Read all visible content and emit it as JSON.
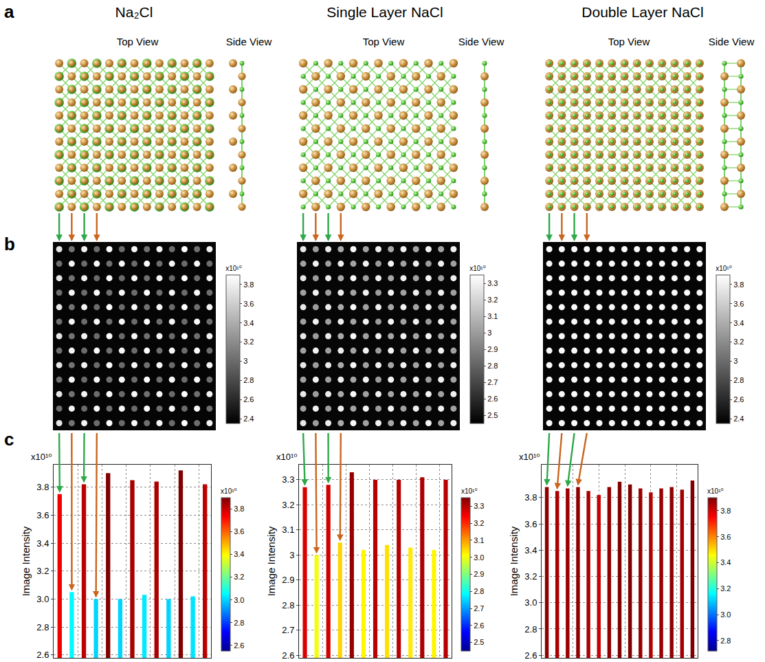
{
  "panel_letters": [
    "a",
    "b",
    "c"
  ],
  "columns": [
    {
      "title": "Na₂Cl",
      "top_view": "Top View",
      "side_view": "Side View"
    },
    {
      "title": "Single Layer NaCl",
      "top_view": "Top View",
      "side_view": "Side View"
    },
    {
      "title": "Double Layer NaCl",
      "top_view": "Top View",
      "side_view": "Side View"
    }
  ],
  "chart_data": [
    {
      "type": "heatmap",
      "multiplier": "x10¹⁰",
      "tick_labels": false,
      "background": 2.38,
      "colorbar_range": [
        2.35,
        3.9
      ],
      "colorbar_ticks": [
        2.4,
        2.6,
        2.8,
        3,
        3.2,
        3.4,
        3.6,
        3.8
      ],
      "cells": [
        [
          3.75,
          3.05,
          3.82,
          3.0,
          3.9,
          3.0,
          3.85,
          3.03,
          3.84,
          3.0,
          3.92,
          3.02,
          3.82
        ],
        [
          3.02,
          3.84,
          3.0,
          3.86,
          3.03,
          3.85,
          3.0,
          3.88,
          3.02,
          3.84,
          3.0,
          3.86,
          3.02
        ],
        [
          3.75,
          3.05,
          3.82,
          3.0,
          3.9,
          3.0,
          3.85,
          3.03,
          3.84,
          3.0,
          3.92,
          3.02,
          3.82
        ],
        [
          3.02,
          3.84,
          3.0,
          3.86,
          3.03,
          3.85,
          3.0,
          3.88,
          3.02,
          3.84,
          3.0,
          3.86,
          3.02
        ],
        [
          3.75,
          3.05,
          3.82,
          3.0,
          3.9,
          3.0,
          3.85,
          3.03,
          3.84,
          3.0,
          3.92,
          3.02,
          3.82
        ],
        [
          3.02,
          3.84,
          3.0,
          3.86,
          3.03,
          3.85,
          3.0,
          3.88,
          3.02,
          3.84,
          3.0,
          3.86,
          3.02
        ],
        [
          3.75,
          3.05,
          3.82,
          3.0,
          3.9,
          3.0,
          3.85,
          3.03,
          3.84,
          3.0,
          3.92,
          3.02,
          3.82
        ],
        [
          3.02,
          3.84,
          3.0,
          3.86,
          3.03,
          3.85,
          3.0,
          3.88,
          3.02,
          3.84,
          3.0,
          3.86,
          3.02
        ],
        [
          3.75,
          3.05,
          3.82,
          3.0,
          3.9,
          3.0,
          3.85,
          3.03,
          3.84,
          3.0,
          3.92,
          3.02,
          3.82
        ],
        [
          3.02,
          3.84,
          3.0,
          3.86,
          3.03,
          3.85,
          3.0,
          3.88,
          3.02,
          3.84,
          3.0,
          3.86,
          3.02
        ],
        [
          3.75,
          3.05,
          3.82,
          3.0,
          3.9,
          3.0,
          3.85,
          3.03,
          3.84,
          3.0,
          3.92,
          3.02,
          3.82
        ],
        [
          3.02,
          3.84,
          3.0,
          3.86,
          3.03,
          3.85,
          3.0,
          3.88,
          3.02,
          3.84,
          3.0,
          3.86,
          3.02
        ],
        [
          3.75,
          3.05,
          3.82,
          3.0,
          3.9,
          3.0,
          3.85,
          3.03,
          3.84,
          3.0,
          3.92,
          3.02,
          3.82
        ]
      ]
    },
    {
      "type": "heatmap",
      "multiplier": "x10¹⁰",
      "tick_labels": false,
      "background": 2.47,
      "colorbar_range": [
        2.45,
        3.35
      ],
      "colorbar_ticks": [
        2.5,
        2.6,
        2.7,
        2.8,
        2.9,
        3,
        3.1,
        3.2,
        3.3
      ],
      "cells": [
        [
          3.27,
          3.0,
          3.28,
          3.05,
          3.33,
          3.02,
          3.3,
          3.04,
          3.3,
          3.03,
          3.31,
          3.02,
          3.3
        ],
        [
          3.02,
          3.3,
          3.01,
          3.29,
          3.03,
          3.3,
          3.0,
          3.31,
          3.02,
          3.29,
          3.0,
          3.3,
          3.02
        ],
        [
          3.27,
          3.0,
          3.28,
          3.05,
          3.33,
          3.02,
          3.3,
          3.04,
          3.3,
          3.03,
          3.31,
          3.02,
          3.3
        ],
        [
          3.02,
          3.3,
          3.01,
          3.29,
          3.03,
          3.3,
          3.0,
          3.31,
          3.02,
          3.29,
          3.0,
          3.3,
          3.02
        ],
        [
          3.27,
          3.0,
          3.28,
          3.05,
          3.33,
          3.02,
          3.3,
          3.04,
          3.3,
          3.03,
          3.31,
          3.02,
          3.3
        ],
        [
          3.02,
          3.3,
          3.01,
          3.29,
          3.03,
          3.3,
          3.0,
          3.31,
          3.02,
          3.29,
          3.0,
          3.3,
          3.02
        ],
        [
          3.27,
          3.0,
          3.28,
          3.05,
          3.33,
          3.02,
          3.3,
          3.04,
          3.3,
          3.03,
          3.31,
          3.02,
          3.3
        ],
        [
          3.02,
          3.3,
          3.01,
          3.29,
          3.03,
          3.3,
          3.0,
          3.31,
          3.02,
          3.29,
          3.0,
          3.3,
          3.02
        ],
        [
          3.27,
          3.0,
          3.28,
          3.05,
          3.33,
          3.02,
          3.3,
          3.04,
          3.3,
          3.03,
          3.31,
          3.02,
          3.3
        ],
        [
          3.02,
          3.3,
          3.01,
          3.29,
          3.03,
          3.3,
          3.0,
          3.31,
          3.02,
          3.29,
          3.0,
          3.3,
          3.02
        ],
        [
          3.27,
          3.0,
          3.28,
          3.05,
          3.33,
          3.02,
          3.3,
          3.04,
          3.3,
          3.03,
          3.31,
          3.02,
          3.3
        ],
        [
          3.02,
          3.3,
          3.01,
          3.29,
          3.03,
          3.3,
          3.0,
          3.31,
          3.02,
          3.29,
          3.0,
          3.3,
          3.02
        ],
        [
          3.27,
          3.0,
          3.28,
          3.05,
          3.33,
          3.02,
          3.3,
          3.04,
          3.3,
          3.03,
          3.31,
          3.02,
          3.3
        ]
      ]
    },
    {
      "type": "heatmap",
      "multiplier": "x10¹⁰",
      "tick_labels": false,
      "background": 2.38,
      "colorbar_range": [
        2.35,
        3.9
      ],
      "colorbar_ticks": [
        2.4,
        2.6,
        2.8,
        3,
        3.2,
        3.4,
        3.6,
        3.8
      ],
      "cells": [
        [
          3.88,
          3.85,
          3.87,
          3.88,
          3.85,
          3.84,
          3.88,
          3.87,
          3.86,
          3.87,
          3.85,
          3.86,
          3.88
        ],
        [
          3.86,
          3.88,
          3.85,
          3.87,
          3.88,
          3.86,
          3.85,
          3.87,
          3.88,
          3.85,
          3.86,
          3.87,
          3.85
        ],
        [
          3.88,
          3.85,
          3.87,
          3.88,
          3.85,
          3.84,
          3.88,
          3.87,
          3.86,
          3.87,
          3.85,
          3.86,
          3.88
        ],
        [
          3.86,
          3.88,
          3.85,
          3.87,
          3.88,
          3.86,
          3.85,
          3.87,
          3.88,
          3.85,
          3.86,
          3.87,
          3.85
        ],
        [
          3.88,
          3.85,
          3.87,
          3.88,
          3.85,
          3.84,
          3.88,
          3.87,
          3.86,
          3.87,
          3.85,
          3.86,
          3.88
        ],
        [
          3.86,
          3.88,
          3.85,
          3.87,
          3.88,
          3.86,
          3.85,
          3.87,
          3.88,
          3.85,
          3.86,
          3.87,
          3.85
        ],
        [
          3.88,
          3.85,
          3.87,
          3.88,
          3.85,
          3.84,
          3.88,
          3.87,
          3.86,
          3.87,
          3.85,
          3.86,
          3.88
        ],
        [
          3.86,
          3.88,
          3.85,
          3.87,
          3.88,
          3.86,
          3.85,
          3.87,
          3.88,
          3.85,
          3.86,
          3.87,
          3.85
        ],
        [
          3.88,
          3.85,
          3.87,
          3.88,
          3.85,
          3.84,
          3.88,
          3.87,
          3.86,
          3.87,
          3.85,
          3.86,
          3.88
        ],
        [
          3.86,
          3.88,
          3.85,
          3.87,
          3.88,
          3.86,
          3.85,
          3.87,
          3.88,
          3.85,
          3.86,
          3.87,
          3.85
        ],
        [
          3.88,
          3.85,
          3.87,
          3.88,
          3.85,
          3.84,
          3.88,
          3.87,
          3.86,
          3.87,
          3.85,
          3.86,
          3.88
        ],
        [
          3.86,
          3.88,
          3.85,
          3.87,
          3.88,
          3.86,
          3.85,
          3.87,
          3.88,
          3.85,
          3.86,
          3.87,
          3.85
        ],
        [
          3.88,
          3.85,
          3.87,
          3.88,
          3.85,
          3.84,
          3.88,
          3.87,
          3.86,
          3.87,
          3.85,
          3.86,
          3.88
        ]
      ]
    },
    {
      "type": "bar",
      "y_label": "Image Intensity",
      "multiplier": "x10¹⁰",
      "grid": true,
      "tick_labels": "y",
      "x": [
        0,
        1,
        2,
        3,
        4,
        5,
        6,
        7,
        8,
        9,
        10,
        11,
        12
      ],
      "values": [
        3.75,
        3.05,
        3.82,
        3.0,
        3.9,
        3.0,
        3.85,
        3.03,
        3.84,
        3.0,
        3.92,
        3.02,
        3.82
      ],
      "xlim": [
        -0.5,
        12.5
      ],
      "xticks": [
        1.5,
        3.5,
        5.5,
        7.5,
        9.5,
        11.5
      ],
      "ylim": [
        2.58,
        3.96
      ],
      "yticks": [
        2.6,
        2.8,
        {
          "value": 3,
          "label": "3.0"
        },
        3.2,
        3.4,
        3.6,
        3.8
      ],
      "colorbar_range": [
        2.55,
        3.9
      ],
      "colorbar_ticks": [
        2.6,
        2.8,
        {
          "value": 3,
          "label": "3.0"
        },
        3.2,
        3.4,
        3.6,
        3.8
      ]
    },
    {
      "type": "bar",
      "y_label": "Image Intensity",
      "multiplier": "x10¹⁰",
      "grid": true,
      "tick_labels": "y",
      "x": [
        0,
        1,
        2,
        3,
        4,
        5,
        6,
        7,
        8,
        9,
        10,
        11,
        12
      ],
      "values": [
        3.27,
        3.0,
        3.28,
        3.05,
        3.33,
        3.02,
        3.3,
        3.04,
        3.3,
        3.03,
        3.31,
        3.02,
        3.3
      ],
      "xlim": [
        -0.5,
        12.5
      ],
      "xticks": [
        1.5,
        3.5,
        5.5,
        7.5,
        9.5,
        11.5
      ],
      "ylim": [
        2.59,
        3.36
      ],
      "yticks": [
        2.6,
        2.7,
        2.8,
        2.9,
        3,
        3.1,
        3.2,
        3.3
      ],
      "colorbar_range": [
        2.45,
        3.35
      ],
      "colorbar_ticks": [
        2.5,
        2.6,
        2.7,
        2.8,
        2.9,
        {
          "value": 3,
          "label": "3.0"
        },
        3.1,
        3.2,
        3.3
      ]
    },
    {
      "type": "bar",
      "y_label": "Image Intensity",
      "multiplier": "x10¹⁰",
      "grid": true,
      "tick_labels": "y",
      "x": [
        0,
        1,
        2,
        3,
        4,
        5,
        6,
        7,
        8,
        9,
        10,
        11,
        12,
        13,
        14
      ],
      "values": [
        3.88,
        3.85,
        3.87,
        3.88,
        3.85,
        3.82,
        3.88,
        3.92,
        3.9,
        3.87,
        3.84,
        3.87,
        3.88,
        3.86,
        3.93
      ],
      "xlim": [
        -0.5,
        14.5
      ],
      "xticks": [
        2.5,
        5,
        7.5,
        10,
        12.5
      ],
      "ylim": [
        2.58,
        4.05
      ],
      "yticks": [
        2.6,
        2.8,
        {
          "value": 3,
          "label": "3.0"
        },
        3.2,
        3.4,
        3.6,
        3.8
      ],
      "colorbar_range": [
        2.72,
        3.9
      ],
      "colorbar_ticks": [
        2.8,
        {
          "value": 3,
          "label": "3.0"
        },
        3.2,
        3.4,
        3.6,
        3.8
      ]
    }
  ]
}
